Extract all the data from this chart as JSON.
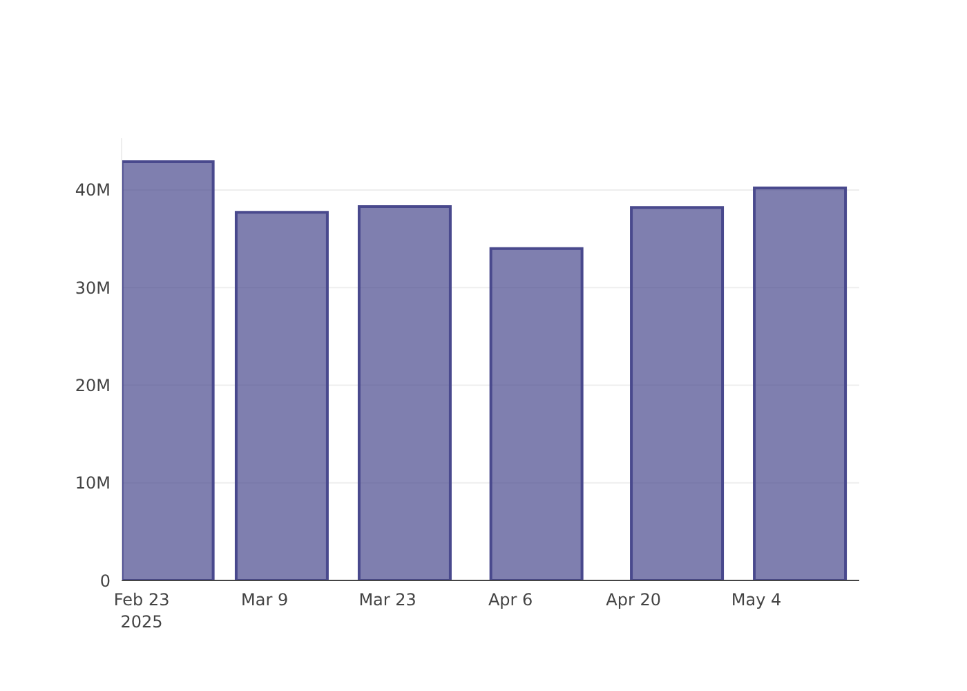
{
  "chart_data": {
    "type": "bar",
    "x": [
      "2025-02-26",
      "2025-03-11",
      "2025-03-25",
      "2025-04-09",
      "2025-04-25",
      "2025-05-09"
    ],
    "values": [
      42900000,
      37700000,
      38300000,
      34000000,
      38200000,
      40200000
    ],
    "color": "#49498d",
    "xlim": [
      "2025-02-20T17:00",
      "2025-05-15T17:00"
    ],
    "xticks": [
      {
        "value": "2025-02-23",
        "label": "Feb 23\n2025"
      },
      {
        "value": "2025-03-09",
        "label": "Mar 9"
      },
      {
        "value": "2025-03-23",
        "label": "Mar 23"
      },
      {
        "value": "2025-04-06",
        "label": "Apr 6"
      },
      {
        "value": "2025-04-20",
        "label": "Apr 20"
      },
      {
        "value": "2025-05-04",
        "label": "May 4"
      }
    ],
    "ylim": [
      0,
      45300000
    ],
    "yticks": [
      0,
      {
        "value": 10000000,
        "label": "10M"
      },
      {
        "value": 20000000,
        "label": "20M"
      },
      {
        "value": 30000000,
        "label": "30M"
      },
      {
        "value": 40000000,
        "label": "40M"
      }
    ],
    "grid": "y"
  }
}
